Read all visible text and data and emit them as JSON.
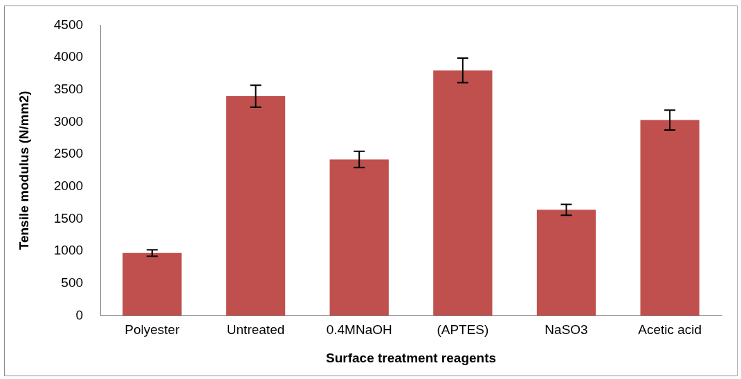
{
  "chart_data": {
    "type": "bar",
    "xlabel": "Surface treatment reagents",
    "ylabel": "Tensile modulus (N/mm2)",
    "categories": [
      "Polyester",
      "Untreated",
      "0.4MNaOH",
      "(APTES)",
      "NaSO3",
      "Acetic acid"
    ],
    "values": [
      970,
      3400,
      2420,
      3800,
      1640,
      3030
    ],
    "errors": [
      50,
      170,
      125,
      190,
      85,
      155
    ],
    "color": "#c0504d",
    "ylim": [
      0,
      4500
    ],
    "yticks": [
      0,
      500,
      1000,
      1500,
      2000,
      2500,
      3000,
      3500,
      4000,
      4500
    ],
    "grid": false,
    "legend": false
  }
}
